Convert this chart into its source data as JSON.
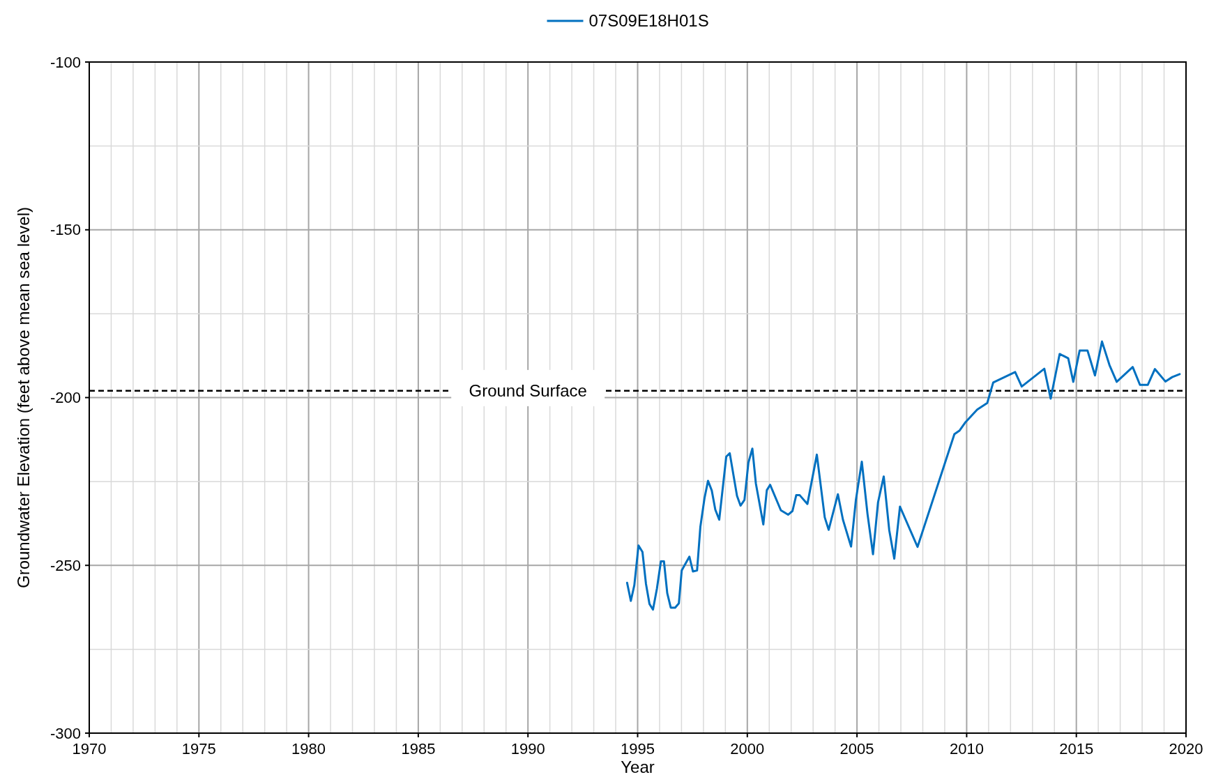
{
  "chart_data": {
    "type": "line",
    "xlabel": "Year",
    "ylabel": "Groundwater Elevation (feet above mean sea level)",
    "xlim": [
      1970,
      2020
    ],
    "ylim": [
      -300,
      -100
    ],
    "xticks": [
      1970,
      {
        "value": 1971,
        "label": null
      },
      {
        "value": 1972,
        "label": null
      },
      {
        "value": 1973,
        "label": null
      },
      {
        "value": 1974,
        "label": null
      },
      1975,
      {
        "value": 1976,
        "label": null
      },
      {
        "value": 1977,
        "label": null
      },
      {
        "value": 1978,
        "label": null
      },
      {
        "value": 1979,
        "label": null
      },
      1980,
      {
        "value": 1981,
        "label": null
      },
      {
        "value": 1982,
        "label": null
      },
      {
        "value": 1983,
        "label": null
      },
      {
        "value": 1984,
        "label": null
      },
      1985,
      {
        "value": 1986,
        "label": null
      },
      {
        "value": 1987,
        "label": null
      },
      {
        "value": 1988,
        "label": null
      },
      {
        "value": 1989,
        "label": null
      },
      1990,
      {
        "value": 1991,
        "label": null
      },
      {
        "value": 1992,
        "label": null
      },
      {
        "value": 1993,
        "label": null
      },
      {
        "value": 1994,
        "label": null
      },
      1995,
      {
        "value": 1996,
        "label": null
      },
      {
        "value": 1997,
        "label": null
      },
      {
        "value": 1998,
        "label": null
      },
      {
        "value": 1999,
        "label": null
      },
      2000,
      {
        "value": 2001,
        "label": null
      },
      {
        "value": 2002,
        "label": null
      },
      {
        "value": 2003,
        "label": null
      },
      {
        "value": 2004,
        "label": null
      },
      2005,
      {
        "value": 2006,
        "label": null
      },
      {
        "value": 2007,
        "label": null
      },
      {
        "value": 2008,
        "label": null
      },
      {
        "value": 2009,
        "label": null
      },
      2010,
      {
        "value": 2011,
        "label": null
      },
      {
        "value": 2012,
        "label": null
      },
      {
        "value": 2013,
        "label": null
      },
      {
        "value": 2014,
        "label": null
      },
      2015,
      {
        "value": 2016,
        "label": null
      },
      {
        "value": 2017,
        "label": null
      },
      {
        "value": 2018,
        "label": null
      },
      {
        "value": 2019,
        "label": null
      },
      2020
    ],
    "yticks": [
      -300,
      {
        "value": -275,
        "label": null
      },
      -250,
      {
        "value": -225,
        "label": null
      },
      -200,
      {
        "value": -175,
        "label": null
      },
      -150,
      {
        "value": -125,
        "label": null
      },
      -100
    ],
    "grid": true,
    "legend": "top",
    "marker": "none",
    "line_style": "solid",
    "ref_lines": [
      {
        "axis": "y",
        "value": -198,
        "label": "Ground Surface",
        "color": "#000000",
        "line_style": "dashed"
      }
    ],
    "series": [
      {
        "name": "07S09E18H01S",
        "color": "#0070c0",
        "x": [
          1994.52,
          1994.69,
          1994.85,
          1995.04,
          1995.22,
          1995.38,
          1995.54,
          1995.7,
          1995.88,
          1996.06,
          1996.2,
          1996.35,
          1996.51,
          1996.71,
          1996.88,
          1997.01,
          1997.36,
          1997.52,
          1997.71,
          1997.86,
          1998.05,
          1998.21,
          1998.38,
          1998.54,
          1998.72,
          1999.04,
          1999.2,
          1999.53,
          1999.69,
          1999.87,
          2000.05,
          2000.23,
          2000.39,
          2000.73,
          2000.89,
          2001.04,
          2001.53,
          2001.86,
          2002.06,
          2002.23,
          2002.39,
          2002.74,
          2003.17,
          2003.53,
          2003.71,
          2004.13,
          2004.36,
          2004.73,
          2004.95,
          2005.22,
          2005.48,
          2005.73,
          2005.96,
          2006.22,
          2006.47,
          2006.7,
          2006.96,
          2007.76,
          2009.44,
          2009.68,
          2009.95,
          2010.48,
          2010.94,
          2011.21,
          2012.21,
          2012.51,
          2013.54,
          2013.83,
          2014.24,
          2014.63,
          2014.86,
          2015.15,
          2015.51,
          2015.85,
          2016.17,
          2016.51,
          2016.84,
          2017.57,
          2017.9,
          2018.26,
          2018.58,
          2019.06,
          2019.37,
          2019.71
        ],
        "values": [
          -255.2,
          -260.6,
          -255.9,
          -244.1,
          -246,
          -255.5,
          -261.5,
          -263.2,
          -256.9,
          -248.8,
          -248.8,
          -258.3,
          -262.6,
          -262.6,
          -261.3,
          -251.5,
          -247.4,
          -251.8,
          -251.5,
          -238.5,
          -229.9,
          -224.8,
          -227.7,
          -233.4,
          -236.4,
          -217.6,
          -216.6,
          -229.3,
          -232.2,
          -230.5,
          -219.4,
          -215.2,
          -225.6,
          -237.8,
          -227.6,
          -226,
          -233.6,
          -234.9,
          -233.8,
          -229.1,
          -229.1,
          -231.7,
          -217,
          -235.7,
          -239.4,
          -228.8,
          -236.4,
          -244.4,
          -230.5,
          -219.1,
          -234.7,
          -246.7,
          -231.2,
          -223.5,
          -239.5,
          -248,
          -232.5,
          -244.5,
          -210.9,
          -209.8,
          -207.3,
          -203.6,
          -201.6,
          -195.5,
          -192.4,
          -196.7,
          -191.4,
          -200.3,
          -187,
          -188.3,
          -195.3,
          -186,
          -186,
          -193.4,
          -183.3,
          -190.3,
          -195.3,
          -190.9,
          -196.2,
          -196.2,
          -191.5,
          -195.2,
          -193.9,
          -193
        ]
      }
    ]
  }
}
